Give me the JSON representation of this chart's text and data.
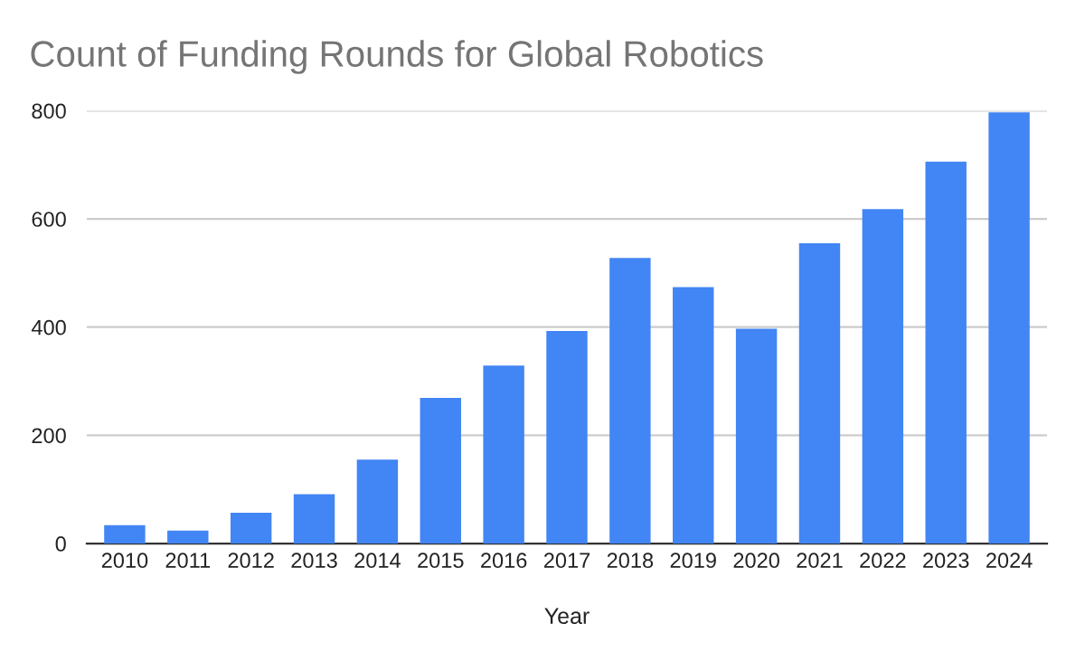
{
  "chart_data": {
    "type": "bar",
    "title": "Count of Funding Rounds for Global Robotics",
    "xlabel": "Year",
    "categories": [
      "2010",
      "2011",
      "2012",
      "2013",
      "2014",
      "2015",
      "2016",
      "2017",
      "2018",
      "2019",
      "2020",
      "2021",
      "2022",
      "2023",
      "2024"
    ],
    "values": [
      34,
      24,
      57,
      91,
      155,
      269,
      329,
      393,
      528,
      474,
      397,
      555,
      618,
      706,
      797
    ],
    "color": "#4285f4",
    "ylim": [
      0,
      800
    ],
    "yticks": [
      0,
      200,
      400,
      600,
      800
    ],
    "grid": "y",
    "legend": false
  }
}
